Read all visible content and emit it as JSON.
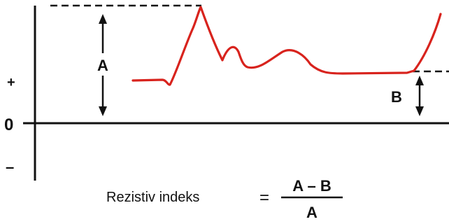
{
  "axis": {
    "plus": "+",
    "zero": "0",
    "minus": "–"
  },
  "markers": {
    "a": "A",
    "b": "B"
  },
  "formula": {
    "label": "Rezistiv indeks",
    "equals": "=",
    "numerator": "A – B",
    "denominator": "A"
  },
  "colors": {
    "waveform": "#d8231d",
    "ink": "#111111"
  }
}
